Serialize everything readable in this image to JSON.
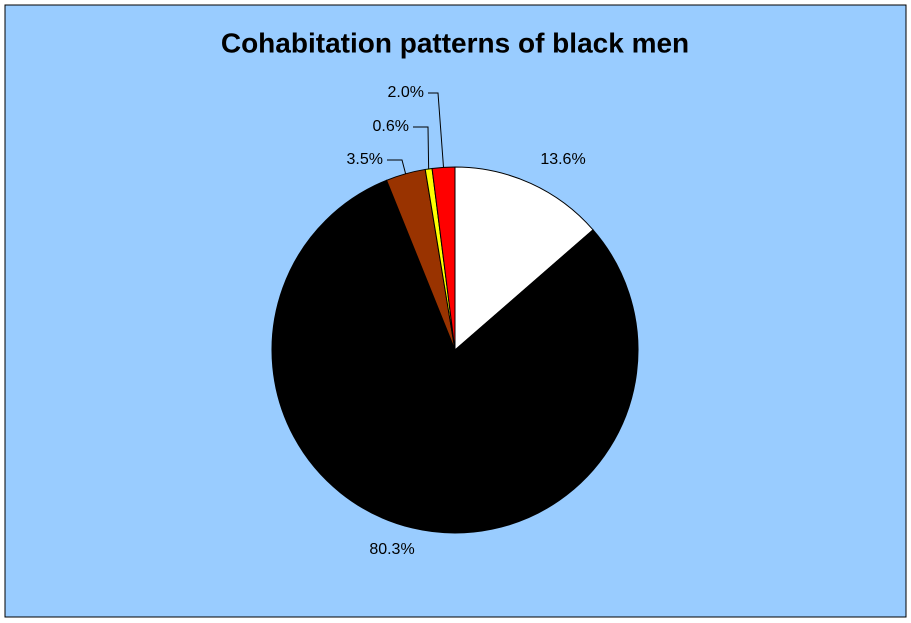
{
  "chart_data": {
    "type": "pie",
    "title": "Cohabitation patterns of black men",
    "values": [
      13.6,
      80.3,
      3.5,
      0.6,
      2.0
    ],
    "value_labels": [
      "13.6%",
      "80.3%",
      "3.5%",
      "0.6%",
      "2.0%"
    ],
    "colors": [
      "#ffffff",
      "#000000",
      "#993300",
      "#ffff00",
      "#ff0000"
    ]
  }
}
